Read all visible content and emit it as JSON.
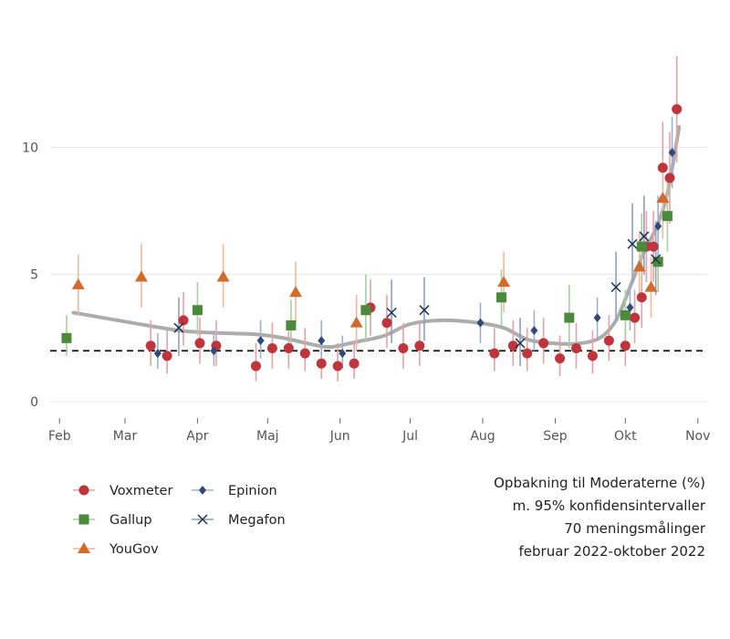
{
  "caption": {
    "line1": "Opbakning til Moderaterne (%)",
    "line2": "m. 95% konfidensintervaller",
    "line3": "70 meningsmålinger",
    "line4": "februar 2022-oktober 2022"
  },
  "chart_data": {
    "type": "scatter",
    "ylim": [
      0,
      14
    ],
    "yticks": [
      0,
      5,
      10
    ],
    "xlim": [
      "2022-01-28",
      "2022-11-05"
    ],
    "xticks": [
      {
        "label": "Feb",
        "date": "2022-02-01"
      },
      {
        "label": "Mar",
        "date": "2022-03-01"
      },
      {
        "label": "Apr",
        "date": "2022-04-01"
      },
      {
        "label": "Maj",
        "date": "2022-05-01"
      },
      {
        "label": "Jun",
        "date": "2022-06-01"
      },
      {
        "label": "Jul",
        "date": "2022-07-01"
      },
      {
        "label": "Aug",
        "date": "2022-08-01"
      },
      {
        "label": "Sep",
        "date": "2022-09-01"
      },
      {
        "label": "Okt",
        "date": "2022-10-01"
      },
      {
        "label": "Nov",
        "date": "2022-11-01"
      }
    ],
    "reference_line": 2.0,
    "series": [
      {
        "name": "Voxmeter",
        "marker": "circle",
        "color": "#c0343c",
        "ci_color": "#e8a0a6",
        "points": [
          {
            "x": "2022-03-12",
            "y": 2.2,
            "lo": 1.4,
            "hi": 3.2
          },
          {
            "x": "2022-03-19",
            "y": 1.8,
            "lo": 1.1,
            "hi": 2.8
          },
          {
            "x": "2022-03-26",
            "y": 3.2,
            "lo": 2.2,
            "hi": 4.3
          },
          {
            "x": "2022-04-02",
            "y": 2.3,
            "lo": 1.5,
            "hi": 3.3
          },
          {
            "x": "2022-04-09",
            "y": 2.2,
            "lo": 1.4,
            "hi": 3.2
          },
          {
            "x": "2022-04-26",
            "y": 1.4,
            "lo": 0.8,
            "hi": 2.3
          },
          {
            "x": "2022-05-03",
            "y": 2.1,
            "lo": 1.3,
            "hi": 3.1
          },
          {
            "x": "2022-05-10",
            "y": 2.1,
            "lo": 1.3,
            "hi": 3.1
          },
          {
            "x": "2022-05-17",
            "y": 1.9,
            "lo": 1.2,
            "hi": 2.9
          },
          {
            "x": "2022-05-24",
            "y": 1.5,
            "lo": 0.9,
            "hi": 2.4
          },
          {
            "x": "2022-05-31",
            "y": 1.4,
            "lo": 0.8,
            "hi": 2.3
          },
          {
            "x": "2022-06-07",
            "y": 1.5,
            "lo": 0.9,
            "hi": 2.4
          },
          {
            "x": "2022-06-14",
            "y": 3.7,
            "lo": 2.6,
            "hi": 4.8
          },
          {
            "x": "2022-06-21",
            "y": 3.1,
            "lo": 2.1,
            "hi": 4.2
          },
          {
            "x": "2022-06-28",
            "y": 2.1,
            "lo": 1.3,
            "hi": 3.1
          },
          {
            "x": "2022-07-05",
            "y": 2.2,
            "lo": 1.4,
            "hi": 3.2
          },
          {
            "x": "2022-08-06",
            "y": 1.9,
            "lo": 1.2,
            "hi": 2.9
          },
          {
            "x": "2022-08-14",
            "y": 2.2,
            "lo": 1.4,
            "hi": 3.2
          },
          {
            "x": "2022-08-20",
            "y": 1.9,
            "lo": 1.2,
            "hi": 2.9
          },
          {
            "x": "2022-08-27",
            "y": 2.3,
            "lo": 1.5,
            "hi": 3.3
          },
          {
            "x": "2022-09-03",
            "y": 1.7,
            "lo": 1.0,
            "hi": 2.6
          },
          {
            "x": "2022-09-10",
            "y": 2.1,
            "lo": 1.3,
            "hi": 3.1
          },
          {
            "x": "2022-09-17",
            "y": 1.8,
            "lo": 1.1,
            "hi": 2.8
          },
          {
            "x": "2022-09-24",
            "y": 2.4,
            "lo": 1.6,
            "hi": 3.4
          },
          {
            "x": "2022-10-01",
            "y": 2.2,
            "lo": 1.4,
            "hi": 3.2
          },
          {
            "x": "2022-10-05",
            "y": 3.3,
            "lo": 2.3,
            "hi": 4.4
          },
          {
            "x": "2022-10-08",
            "y": 4.1,
            "lo": 2.9,
            "hi": 5.3
          },
          {
            "x": "2022-10-10",
            "y": 6.1,
            "lo": 4.7,
            "hi": 7.5
          },
          {
            "x": "2022-10-13",
            "y": 6.1,
            "lo": 4.7,
            "hi": 7.5
          },
          {
            "x": "2022-10-17",
            "y": 9.2,
            "lo": 7.4,
            "hi": 11.0
          },
          {
            "x": "2022-10-20",
            "y": 8.8,
            "lo": 7.0,
            "hi": 10.6
          },
          {
            "x": "2022-10-23",
            "y": 11.5,
            "lo": 9.4,
            "hi": 13.6
          }
        ]
      },
      {
        "name": "Gallup",
        "marker": "square",
        "color": "#4a8a3a",
        "ci_color": "#a9cfa0",
        "points": [
          {
            "x": "2022-02-04",
            "y": 2.5,
            "lo": 1.8,
            "hi": 3.4
          },
          {
            "x": "2022-04-01",
            "y": 3.6,
            "lo": 2.6,
            "hi": 4.7
          },
          {
            "x": "2022-05-11",
            "y": 3.0,
            "lo": 2.0,
            "hi": 4.0
          },
          {
            "x": "2022-06-12",
            "y": 3.6,
            "lo": 2.4,
            "hi": 5.0
          },
          {
            "x": "2022-08-09",
            "y": 4.1,
            "lo": 3.0,
            "hi": 5.2
          },
          {
            "x": "2022-09-07",
            "y": 3.3,
            "lo": 2.1,
            "hi": 4.6
          },
          {
            "x": "2022-10-01",
            "y": 3.4,
            "lo": 2.5,
            "hi": 4.4
          },
          {
            "x": "2022-10-08",
            "y": 6.1,
            "lo": 4.8,
            "hi": 7.4
          },
          {
            "x": "2022-10-15",
            "y": 5.5,
            "lo": 4.3,
            "hi": 6.7
          },
          {
            "x": "2022-10-19",
            "y": 7.3,
            "lo": 5.9,
            "hi": 8.7
          }
        ]
      },
      {
        "name": "YouGov",
        "marker": "triangle",
        "color": "#d46a2a",
        "ci_color": "#f2b89a",
        "points": [
          {
            "x": "2022-02-09",
            "y": 4.6,
            "lo": 3.4,
            "hi": 5.8
          },
          {
            "x": "2022-03-08",
            "y": 4.9,
            "lo": 3.7,
            "hi": 6.2
          },
          {
            "x": "2022-04-12",
            "y": 4.9,
            "lo": 3.7,
            "hi": 6.2
          },
          {
            "x": "2022-05-13",
            "y": 4.3,
            "lo": 3.1,
            "hi": 5.5
          },
          {
            "x": "2022-06-08",
            "y": 3.1,
            "lo": 2.0,
            "hi": 4.2
          },
          {
            "x": "2022-08-10",
            "y": 4.7,
            "lo": 3.5,
            "hi": 5.9
          },
          {
            "x": "2022-10-07",
            "y": 5.3,
            "lo": 4.0,
            "hi": 6.6
          },
          {
            "x": "2022-10-12",
            "y": 4.5,
            "lo": 3.3,
            "hi": 5.7
          },
          {
            "x": "2022-10-17",
            "y": 8.0,
            "lo": 6.4,
            "hi": 9.6
          }
        ]
      },
      {
        "name": "Epinion",
        "marker": "diamond",
        "color": "#2f4a7a",
        "ci_color": "#9eb0d0",
        "points": [
          {
            "x": "2022-03-15",
            "y": 1.9,
            "lo": 1.3,
            "hi": 2.7
          },
          {
            "x": "2022-04-08",
            "y": 2.0,
            "lo": 1.4,
            "hi": 2.8
          },
          {
            "x": "2022-04-28",
            "y": 2.4,
            "lo": 1.7,
            "hi": 3.2
          },
          {
            "x": "2022-05-24",
            "y": 2.4,
            "lo": 1.7,
            "hi": 3.2
          },
          {
            "x": "2022-06-02",
            "y": 1.9,
            "lo": 1.3,
            "hi": 2.6
          },
          {
            "x": "2022-07-31",
            "y": 3.1,
            "lo": 2.3,
            "hi": 3.9
          },
          {
            "x": "2022-08-23",
            "y": 2.8,
            "lo": 2.0,
            "hi": 3.6
          },
          {
            "x": "2022-09-19",
            "y": 3.3,
            "lo": 2.5,
            "hi": 4.1
          },
          {
            "x": "2022-10-03",
            "y": 3.7,
            "lo": 2.8,
            "hi": 4.6
          },
          {
            "x": "2022-10-15",
            "y": 6.9,
            "lo": 5.7,
            "hi": 8.1
          },
          {
            "x": "2022-10-21",
            "y": 9.8,
            "lo": 8.4,
            "hi": 11.2
          }
        ]
      },
      {
        "name": "Megafon",
        "marker": "x",
        "color": "#1d3256",
        "ci_color": "#8f9fbd",
        "points": [
          {
            "x": "2022-03-24",
            "y": 2.9,
            "lo": 1.8,
            "hi": 4.1
          },
          {
            "x": "2022-06-23",
            "y": 3.5,
            "lo": 2.3,
            "hi": 4.8
          },
          {
            "x": "2022-07-07",
            "y": 3.6,
            "lo": 2.4,
            "hi": 4.9
          },
          {
            "x": "2022-08-17",
            "y": 2.3,
            "lo": 1.4,
            "hi": 3.3
          },
          {
            "x": "2022-09-27",
            "y": 4.5,
            "lo": 3.2,
            "hi": 5.9
          },
          {
            "x": "2022-10-04",
            "y": 6.2,
            "lo": 4.7,
            "hi": 7.8
          },
          {
            "x": "2022-10-09",
            "y": 6.5,
            "lo": 5.0,
            "hi": 8.1
          },
          {
            "x": "2022-10-14",
            "y": 5.6,
            "lo": 4.2,
            "hi": 7.1
          }
        ]
      }
    ],
    "trend": [
      {
        "x": "2022-02-07",
        "y": 3.5
      },
      {
        "x": "2022-03-01",
        "y": 3.15
      },
      {
        "x": "2022-03-24",
        "y": 2.8
      },
      {
        "x": "2022-04-10",
        "y": 2.7
      },
      {
        "x": "2022-04-26",
        "y": 2.65
      },
      {
        "x": "2022-05-08",
        "y": 2.5
      },
      {
        "x": "2022-05-20",
        "y": 2.25
      },
      {
        "x": "2022-05-28",
        "y": 2.15
      },
      {
        "x": "2022-06-08",
        "y": 2.35
      },
      {
        "x": "2022-06-20",
        "y": 2.6
      },
      {
        "x": "2022-07-01",
        "y": 3.05
      },
      {
        "x": "2022-07-15",
        "y": 3.2
      },
      {
        "x": "2022-07-30",
        "y": 3.1
      },
      {
        "x": "2022-08-10",
        "y": 2.9
      },
      {
        "x": "2022-08-20",
        "y": 2.45
      },
      {
        "x": "2022-08-30",
        "y": 2.3
      },
      {
        "x": "2022-09-10",
        "y": 2.28
      },
      {
        "x": "2022-09-20",
        "y": 2.5
      },
      {
        "x": "2022-09-27",
        "y": 3.2
      },
      {
        "x": "2022-10-03",
        "y": 4.5
      },
      {
        "x": "2022-10-09",
        "y": 5.9
      },
      {
        "x": "2022-10-14",
        "y": 6.8
      },
      {
        "x": "2022-10-19",
        "y": 8.2
      },
      {
        "x": "2022-10-24",
        "y": 10.8
      }
    ],
    "legend": {
      "placement": "bottom-left"
    }
  }
}
